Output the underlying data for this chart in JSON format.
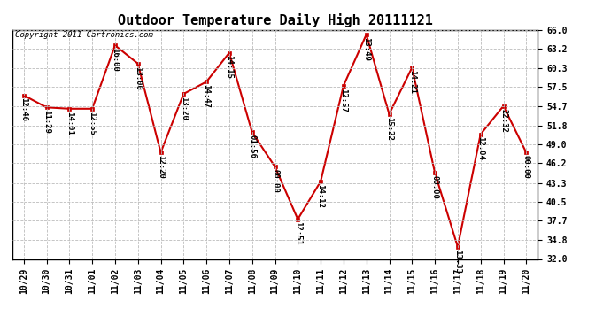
{
  "title": "Outdoor Temperature Daily High 20111121",
  "copyright": "Copyright 2011 Cartronics.com",
  "x_labels": [
    "10/29",
    "10/30",
    "10/31",
    "11/01",
    "11/02",
    "11/03",
    "11/04",
    "11/05",
    "11/06",
    "11/07",
    "11/08",
    "11/09",
    "11/10",
    "11/11",
    "11/12",
    "11/13",
    "11/14",
    "11/15",
    "11/16",
    "11/17",
    "11/18",
    "11/19",
    "11/20"
  ],
  "y_values": [
    56.3,
    54.5,
    54.3,
    54.3,
    63.7,
    61.0,
    47.8,
    56.5,
    58.3,
    62.6,
    50.8,
    45.7,
    37.9,
    43.5,
    57.7,
    65.3,
    53.5,
    60.4,
    44.8,
    33.8,
    50.5,
    54.7,
    47.8
  ],
  "time_labels": [
    "12:46",
    "11:29",
    "14:01",
    "12:55",
    "16:00",
    "13:00",
    "12:20",
    "13:20",
    "14:47",
    "14:15",
    "01:56",
    "00:00",
    "12:51",
    "14:12",
    "12:57",
    "13:49",
    "15:22",
    "14:21",
    "00:00",
    "13:33",
    "12:04",
    "22:32",
    "00:00"
  ],
  "line_color": "#cc0000",
  "marker_color": "#cc0000",
  "bg_color": "#ffffff",
  "grid_color": "#bbbbbb",
  "ylim": [
    32.0,
    66.0
  ],
  "yticks": [
    32.0,
    34.8,
    37.7,
    40.5,
    43.3,
    46.2,
    49.0,
    51.8,
    54.7,
    57.5,
    60.3,
    63.2,
    66.0
  ],
  "title_fontsize": 11,
  "tick_fontsize": 7,
  "annotation_fontsize": 6.5,
  "copyright_fontsize": 6.5
}
